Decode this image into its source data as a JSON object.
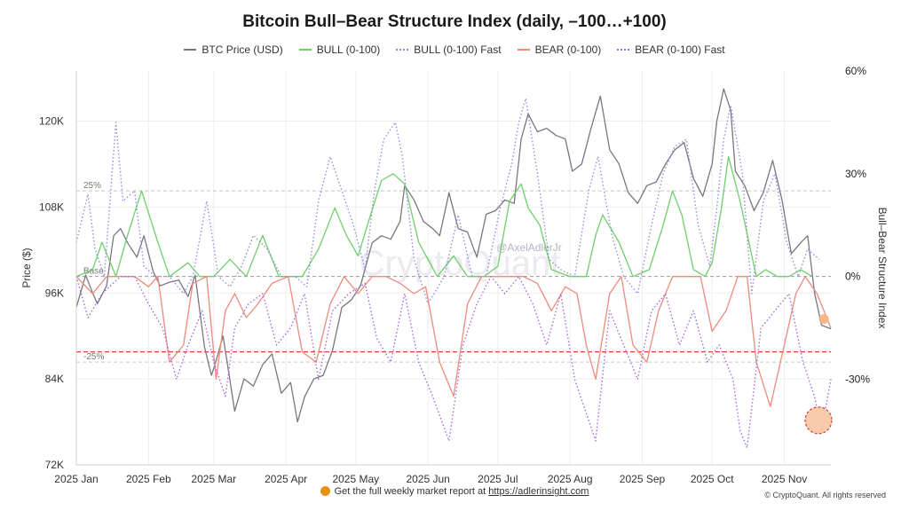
{
  "chart_data": {
    "type": "line",
    "title": "Bitcoin Bull–Bear Structure Index (daily, –100…+100)",
    "xlabel": "",
    "ylabel": "Price ($)",
    "y2label": "Bull–Bear Structure Index",
    "legend_position": "top-center",
    "grid": true,
    "x_ticks": [
      "2025 Jan",
      "2025 Feb",
      "2025 Mar",
      "2025 Apr",
      "2025 May",
      "2025 Jun",
      "2025 Jul",
      "2025 Aug",
      "2025 Sep",
      "2025 Oct",
      "2025 Nov"
    ],
    "x_range": [
      "2025-01-01",
      "2025-11-21"
    ],
    "y_ticks": [
      "72K",
      "84K",
      "96K",
      "108K",
      "120K"
    ],
    "ylim": [
      72000,
      127000
    ],
    "y2_ticks": [
      "60%",
      "30%",
      "0%",
      "-30%"
    ],
    "y2lim": [
      -55,
      60
    ],
    "reference_lines": [
      {
        "label": "25%",
        "value": 25
      },
      {
        "label": "Base",
        "value": 0
      },
      {
        "label": "-25%",
        "value": -25
      }
    ],
    "threshold_value": -22,
    "annotation": "@AxelAdlerJr",
    "watermark": "CryptoQuant",
    "series": [
      {
        "name": "BTC Price (USD)",
        "color": "#777782",
        "axis": "left",
        "style": "solid",
        "x": [
          "2025-01-01",
          "2025-01-05",
          "2025-01-08",
          "2025-01-10",
          "2025-01-14",
          "2025-01-17",
          "2025-01-20",
          "2025-01-23",
          "2025-01-27",
          "2025-01-30",
          "2025-02-03",
          "2025-02-06",
          "2025-02-10",
          "2025-02-14",
          "2025-02-18",
          "2025-02-21",
          "2025-02-25",
          "2025-02-28",
          "2025-03-02",
          "2025-03-05",
          "2025-03-10",
          "2025-03-14",
          "2025-03-18",
          "2025-03-22",
          "2025-03-26",
          "2025-03-30",
          "2025-04-03",
          "2025-04-06",
          "2025-04-09",
          "2025-04-13",
          "2025-04-17",
          "2025-04-21",
          "2025-04-25",
          "2025-04-29",
          "2025-05-03",
          "2025-05-08",
          "2025-05-12",
          "2025-05-16",
          "2025-05-20",
          "2025-05-22",
          "2025-05-26",
          "2025-05-30",
          "2025-06-03",
          "2025-06-06",
          "2025-06-10",
          "2025-06-14",
          "2025-06-18",
          "2025-06-22",
          "2025-06-26",
          "2025-06-30",
          "2025-07-04",
          "2025-07-08",
          "2025-07-11",
          "2025-07-14",
          "2025-07-18",
          "2025-07-22",
          "2025-07-26",
          "2025-07-30",
          "2025-08-02",
          "2025-08-06",
          "2025-08-10",
          "2025-08-14",
          "2025-08-18",
          "2025-08-22",
          "2025-08-26",
          "2025-08-30",
          "2025-09-03",
          "2025-09-07",
          "2025-09-11",
          "2025-09-15",
          "2025-09-19",
          "2025-09-23",
          "2025-09-27",
          "2025-10-01",
          "2025-10-03",
          "2025-10-06",
          "2025-10-09",
          "2025-10-11",
          "2025-10-15",
          "2025-10-19",
          "2025-10-23",
          "2025-10-27",
          "2025-10-31",
          "2025-11-04",
          "2025-11-08",
          "2025-11-11",
          "2025-11-14",
          "2025-11-17",
          "2025-11-21"
        ],
        "values": [
          94000,
          98500,
          96000,
          94500,
          97000,
          104000,
          105000,
          103000,
          101000,
          104000,
          99000,
          97000,
          97500,
          97800,
          95500,
          98500,
          88500,
          84500,
          86500,
          90000,
          79500,
          84000,
          83000,
          86000,
          87500,
          82000,
          83500,
          78000,
          81500,
          84000,
          84500,
          88000,
          94000,
          95000,
          97000,
          103000,
          104000,
          103500,
          106000,
          111000,
          109000,
          106000,
          105000,
          104000,
          110000,
          105000,
          104500,
          101000,
          107000,
          107500,
          109000,
          108500,
          117500,
          121000,
          118500,
          119000,
          118000,
          117500,
          113000,
          114000,
          119000,
          123500,
          116000,
          114000,
          110000,
          108500,
          111000,
          111500,
          114000,
          116000,
          117000,
          112000,
          109500,
          114000,
          120000,
          124500,
          121500,
          113000,
          111000,
          107500,
          110000,
          114500,
          109000,
          101500,
          103000,
          104000,
          96000,
          91500,
          91000
        ]
      },
      {
        "name": "BULL (0-100)",
        "color": "#6fcf6a",
        "axis": "right",
        "style": "solid",
        "x": [
          "2025-01-01",
          "2025-01-08",
          "2025-01-12",
          "2025-01-18",
          "2025-01-23",
          "2025-01-29",
          "2025-02-05",
          "2025-02-10",
          "2025-02-18",
          "2025-02-23",
          "2025-03-01",
          "2025-03-08",
          "2025-03-15",
          "2025-03-22",
          "2025-03-29",
          "2025-04-08",
          "2025-04-15",
          "2025-04-22",
          "2025-04-27",
          "2025-05-02",
          "2025-05-06",
          "2025-05-12",
          "2025-05-17",
          "2025-05-22",
          "2025-05-28",
          "2025-06-05",
          "2025-06-12",
          "2025-06-18",
          "2025-06-25",
          "2025-07-01",
          "2025-07-06",
          "2025-07-11",
          "2025-07-14",
          "2025-07-19",
          "2025-07-24",
          "2025-08-01",
          "2025-08-08",
          "2025-08-12",
          "2025-08-15",
          "2025-08-22",
          "2025-08-28",
          "2025-09-04",
          "2025-09-10",
          "2025-09-14",
          "2025-09-18",
          "2025-09-23",
          "2025-09-28",
          "2025-10-01",
          "2025-10-05",
          "2025-10-08",
          "2025-10-13",
          "2025-10-20",
          "2025-10-24",
          "2025-10-29",
          "2025-11-03",
          "2025-11-08",
          "2025-11-13"
        ],
        "values": [
          0,
          2,
          10,
          0,
          12,
          25,
          10,
          0,
          4,
          0,
          0,
          5,
          0,
          12,
          0,
          0,
          8,
          20,
          12,
          6,
          15,
          28,
          30,
          27,
          10,
          0,
          6,
          0,
          0,
          3,
          22,
          27,
          20,
          15,
          2,
          0,
          0,
          12,
          18,
          10,
          0,
          2,
          15,
          25,
          18,
          2,
          0,
          4,
          20,
          35,
          22,
          0,
          2,
          0,
          0,
          2,
          0
        ]
      },
      {
        "name": "BULL (0-100) Fast",
        "color": "#8f8fe0",
        "axis": "right",
        "style": "dotted",
        "x": [
          "2025-01-01",
          "2025-01-06",
          "2025-01-09",
          "2025-01-13",
          "2025-01-18",
          "2025-01-21",
          "2025-01-26",
          "2025-01-30",
          "2025-02-04",
          "2025-02-10",
          "2025-02-16",
          "2025-02-20",
          "2025-02-26",
          "2025-03-03",
          "2025-03-08",
          "2025-03-13",
          "2025-03-18",
          "2025-03-24",
          "2025-03-30",
          "2025-04-05",
          "2025-04-10",
          "2025-04-15",
          "2025-04-20",
          "2025-04-25",
          "2025-04-30",
          "2025-05-05",
          "2025-05-09",
          "2025-05-13",
          "2025-05-18",
          "2025-05-21",
          "2025-05-26",
          "2025-06-01",
          "2025-06-08",
          "2025-06-14",
          "2025-06-20",
          "2025-06-26",
          "2025-07-02",
          "2025-07-07",
          "2025-07-10",
          "2025-07-13",
          "2025-07-18",
          "2025-07-23",
          "2025-07-28",
          "2025-08-03",
          "2025-08-09",
          "2025-08-13",
          "2025-08-19",
          "2025-08-24",
          "2025-08-30",
          "2025-09-05",
          "2025-09-10",
          "2025-09-15",
          "2025-09-20",
          "2025-09-25",
          "2025-09-30",
          "2025-10-03",
          "2025-10-06",
          "2025-10-09",
          "2025-10-14",
          "2025-10-18",
          "2025-10-23",
          "2025-10-28",
          "2025-11-02",
          "2025-11-07",
          "2025-11-11",
          "2025-11-16"
        ],
        "values": [
          10,
          24,
          8,
          0,
          45,
          22,
          25,
          3,
          0,
          0,
          -5,
          0,
          22,
          0,
          -3,
          3,
          12,
          8,
          0,
          0,
          -3,
          22,
          35,
          25,
          15,
          2,
          25,
          40,
          45,
          35,
          5,
          -8,
          0,
          18,
          0,
          0,
          20,
          33,
          45,
          52,
          30,
          5,
          2,
          0,
          25,
          35,
          12,
          0,
          -5,
          15,
          30,
          38,
          40,
          15,
          3,
          20,
          40,
          50,
          30,
          -5,
          22,
          30,
          10,
          0,
          8,
          5
        ]
      },
      {
        "name": "BEAR (0-100)",
        "color": "#ee8a7c",
        "axis": "right",
        "style": "solid",
        "x": [
          "2025-01-01",
          "2025-01-08",
          "2025-01-14",
          "2025-01-20",
          "2025-01-26",
          "2025-02-01",
          "2025-02-05",
          "2025-02-10",
          "2025-02-16",
          "2025-02-20",
          "2025-02-26",
          "2025-03-02",
          "2025-03-06",
          "2025-03-10",
          "2025-03-15",
          "2025-03-20",
          "2025-03-26",
          "2025-04-02",
          "2025-04-08",
          "2025-04-14",
          "2025-04-20",
          "2025-04-26",
          "2025-05-02",
          "2025-05-08",
          "2025-05-14",
          "2025-05-20",
          "2025-05-26",
          "2025-05-31",
          "2025-06-06",
          "2025-06-12",
          "2025-06-18",
          "2025-06-24",
          "2025-06-30",
          "2025-07-06",
          "2025-07-12",
          "2025-07-18",
          "2025-07-24",
          "2025-07-30",
          "2025-08-04",
          "2025-08-08",
          "2025-08-12",
          "2025-08-18",
          "2025-08-23",
          "2025-08-28",
          "2025-09-03",
          "2025-09-08",
          "2025-09-14",
          "2025-09-20",
          "2025-09-26",
          "2025-10-01",
          "2025-10-07",
          "2025-10-12",
          "2025-10-16",
          "2025-10-20",
          "2025-10-26",
          "2025-11-01",
          "2025-11-06",
          "2025-11-10",
          "2025-11-15",
          "2025-11-21"
        ],
        "values": [
          0,
          -5,
          0,
          0,
          0,
          -3,
          0,
          -25,
          -20,
          -2,
          0,
          -30,
          -10,
          -5,
          -12,
          -8,
          -2,
          0,
          -22,
          -25,
          -8,
          0,
          -5,
          0,
          0,
          -2,
          -5,
          -3,
          -25,
          -35,
          -8,
          0,
          0,
          0,
          0,
          -2,
          -10,
          -3,
          -5,
          -20,
          -30,
          -5,
          0,
          -20,
          -25,
          -10,
          0,
          0,
          0,
          -16,
          -10,
          0,
          0,
          -25,
          -38,
          -20,
          -5,
          0,
          -5,
          -15
        ]
      },
      {
        "name": "BEAR (0-100) Fast",
        "color": "#a46ad8",
        "axis": "right",
        "style": "dotted",
        "x": [
          "2025-01-01",
          "2025-01-06",
          "2025-01-12",
          "2025-01-20",
          "2025-01-26",
          "2025-02-01",
          "2025-02-07",
          "2025-02-13",
          "2025-02-18",
          "2025-02-24",
          "2025-03-01",
          "2025-03-06",
          "2025-03-10",
          "2025-03-16",
          "2025-03-22",
          "2025-03-28",
          "2025-04-03",
          "2025-04-09",
          "2025-04-15",
          "2025-04-21",
          "2025-04-28",
          "2025-05-05",
          "2025-05-10",
          "2025-05-16",
          "2025-05-22",
          "2025-05-28",
          "2025-06-03",
          "2025-06-10",
          "2025-06-16",
          "2025-06-22",
          "2025-06-28",
          "2025-07-04",
          "2025-07-10",
          "2025-07-16",
          "2025-07-22",
          "2025-07-28",
          "2025-08-03",
          "2025-08-08",
          "2025-08-12",
          "2025-08-18",
          "2025-08-24",
          "2025-08-30",
          "2025-09-05",
          "2025-09-11",
          "2025-09-17",
          "2025-09-23",
          "2025-09-29",
          "2025-10-04",
          "2025-10-10",
          "2025-10-13",
          "2025-10-16",
          "2025-10-22",
          "2025-10-28",
          "2025-11-03",
          "2025-11-09",
          "2025-11-14",
          "2025-11-17",
          "2025-11-21"
        ],
        "values": [
          0,
          -12,
          -5,
          0,
          0,
          -8,
          -15,
          -30,
          -20,
          -10,
          -25,
          -35,
          -15,
          -8,
          -5,
          -20,
          -15,
          -5,
          -30,
          -10,
          -5,
          -2,
          -18,
          -25,
          -5,
          -25,
          -35,
          -48,
          -20,
          -8,
          0,
          -5,
          0,
          -8,
          -20,
          -5,
          -30,
          -40,
          -48,
          -10,
          -20,
          -30,
          -10,
          -5,
          -20,
          -10,
          -25,
          -20,
          -30,
          -45,
          -50,
          -15,
          -10,
          -5,
          -25,
          -35,
          -45,
          -30
        ]
      }
    ]
  },
  "watermark_handle": "@AxelAdlerJr",
  "footer": {
    "text": "Get the full weekly market report at",
    "link": "https://adlerinsight.com",
    "copyright": "© CryptoQuant. All rights reserved"
  }
}
